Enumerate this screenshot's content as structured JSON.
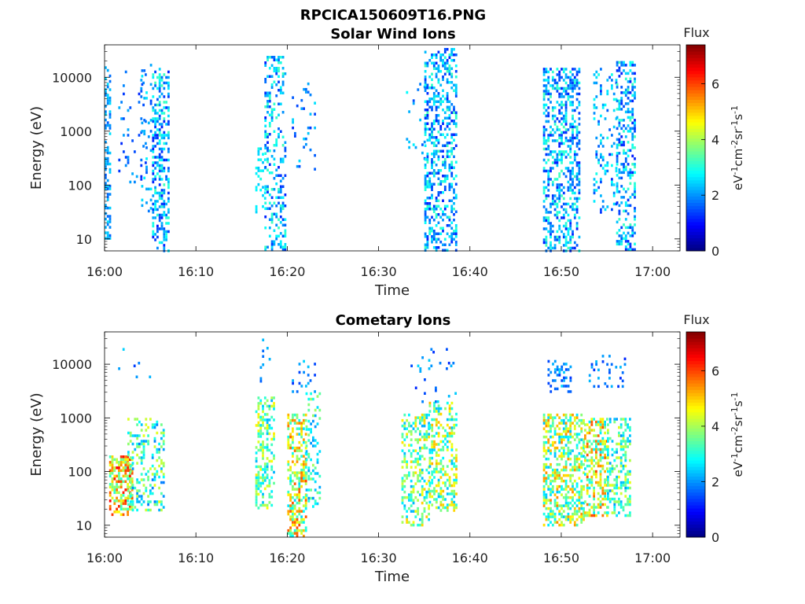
{
  "figure": {
    "title": "RPCICA150609T16.PNG"
  },
  "chart_data": [
    {
      "type": "heatmap",
      "title": "Solar Wind Ions",
      "xlabel": "Time",
      "ylabel": "Energy (eV)",
      "x_ticks": [
        "16:00",
        "16:10",
        "16:20",
        "16:30",
        "16:40",
        "16:50",
        "17:00"
      ],
      "xlim_minutes": [
        0,
        63
      ],
      "y_scale": "log",
      "ylim": [
        6,
        40000
      ],
      "y_ticks": [
        10,
        100,
        1000,
        10000
      ],
      "y_tick_labels": [
        "10",
        "100",
        "1000",
        "10000"
      ],
      "colorbar": {
        "label": "Flux",
        "units": "eV-1cm-2sr-1s-1",
        "range": [
          0,
          7.4
        ],
        "ticks": [
          0,
          2,
          4,
          6
        ],
        "tick_labels": [
          "0",
          "2",
          "4",
          "6"
        ],
        "colormap": "jet"
      },
      "bursts": [
        {
          "t0": 0.0,
          "t1": 0.5,
          "e_lo": 10,
          "e_hi": 18000,
          "v_lo": 1.6,
          "v_hi": 2.6,
          "density": 0.45
        },
        {
          "t0": 1.5,
          "t1": 4.5,
          "e_lo": 100,
          "e_hi": 15000,
          "v_lo": 1.2,
          "v_hi": 2.2,
          "density": 0.07
        },
        {
          "t0": 4.0,
          "t1": 5.2,
          "e_lo": 30,
          "e_hi": 20000,
          "v_lo": 1.4,
          "v_hi": 2.8,
          "density": 0.1
        },
        {
          "t0": 5.2,
          "t1": 7.0,
          "e_lo": 6,
          "e_hi": 15000,
          "v_lo": 1.1,
          "v_hi": 3.3,
          "density": 0.42
        },
        {
          "t0": 16.5,
          "t1": 17.5,
          "e_lo": 30,
          "e_hi": 500,
          "v_lo": 2.3,
          "v_hi": 3.0,
          "density": 0.25
        },
        {
          "t0": 17.5,
          "t1": 19.8,
          "e_lo": 6,
          "e_hi": 25000,
          "v_lo": 1.1,
          "v_hi": 3.3,
          "density": 0.32
        },
        {
          "t0": 20.5,
          "t1": 23.0,
          "e_lo": 200,
          "e_hi": 9000,
          "v_lo": 1.2,
          "v_hi": 2.6,
          "density": 0.1
        },
        {
          "t0": 33.0,
          "t1": 35.0,
          "e_lo": 300,
          "e_hi": 10000,
          "v_lo": 1.4,
          "v_hi": 2.8,
          "density": 0.06
        },
        {
          "t0": 35.0,
          "t1": 38.5,
          "e_lo": 6,
          "e_hi": 35000,
          "v_lo": 1.1,
          "v_hi": 3.3,
          "density": 0.4
        },
        {
          "t0": 48.0,
          "t1": 52.0,
          "e_lo": 6,
          "e_hi": 15000,
          "v_lo": 1.1,
          "v_hi": 3.3,
          "density": 0.4
        },
        {
          "t0": 53.5,
          "t1": 56.0,
          "e_lo": 30,
          "e_hi": 15000,
          "v_lo": 1.2,
          "v_hi": 3.0,
          "density": 0.2
        },
        {
          "t0": 56.0,
          "t1": 58.0,
          "e_lo": 6,
          "e_hi": 20000,
          "v_lo": 1.1,
          "v_hi": 3.3,
          "density": 0.4
        }
      ]
    },
    {
      "type": "heatmap",
      "title": "Cometary Ions",
      "xlabel": "Time",
      "ylabel": "Energy (eV)",
      "x_ticks": [
        "16:00",
        "16:10",
        "16:20",
        "16:30",
        "16:40",
        "16:50",
        "17:00"
      ],
      "xlim_minutes": [
        0,
        63
      ],
      "y_scale": "log",
      "ylim": [
        6,
        40000
      ],
      "y_ticks": [
        10,
        100,
        1000,
        10000
      ],
      "y_tick_labels": [
        "10",
        "100",
        "1000",
        "10000"
      ],
      "colorbar": {
        "label": "Flux",
        "units": "eV-1cm-2sr-1s-1",
        "range": [
          0,
          7.4
        ],
        "ticks": [
          0,
          2,
          4,
          6
        ],
        "tick_labels": [
          "0",
          "2",
          "4",
          "6"
        ],
        "colormap": "jet"
      },
      "bursts": [
        {
          "t0": 0.5,
          "t1": 3.0,
          "e_lo": 15,
          "e_hi": 200,
          "v_lo": 3.0,
          "v_hi": 6.5,
          "density": 0.6
        },
        {
          "t0": 2.5,
          "t1": 6.5,
          "e_lo": 20,
          "e_hi": 1000,
          "v_lo": 1.8,
          "v_hi": 4.5,
          "density": 0.3
        },
        {
          "t0": 1.0,
          "t1": 5.0,
          "e_lo": 5000,
          "e_hi": 20000,
          "v_lo": 1.3,
          "v_hi": 2.5,
          "density": 0.07
        },
        {
          "t0": 16.5,
          "t1": 18.5,
          "e_lo": 20,
          "e_hi": 2500,
          "v_lo": 2.2,
          "v_hi": 4.8,
          "density": 0.4
        },
        {
          "t0": 17.0,
          "t1": 18.0,
          "e_lo": 5000,
          "e_hi": 30000,
          "v_lo": 1.2,
          "v_hi": 2.5,
          "density": 0.1
        },
        {
          "t0": 20.0,
          "t1": 22.0,
          "e_lo": 6,
          "e_hi": 1200,
          "v_lo": 2.5,
          "v_hi": 6.0,
          "density": 0.5
        },
        {
          "t0": 22.0,
          "t1": 23.5,
          "e_lo": 20,
          "e_hi": 3000,
          "v_lo": 2.0,
          "v_hi": 4.0,
          "density": 0.25
        },
        {
          "t0": 20.5,
          "t1": 23.0,
          "e_lo": 3000,
          "e_hi": 12000,
          "v_lo": 1.2,
          "v_hi": 2.5,
          "density": 0.1
        },
        {
          "t0": 32.5,
          "t1": 35.5,
          "e_lo": 10,
          "e_hi": 1200,
          "v_lo": 2.2,
          "v_hi": 5.0,
          "density": 0.4
        },
        {
          "t0": 35.5,
          "t1": 38.5,
          "e_lo": 20,
          "e_hi": 2000,
          "v_lo": 2.3,
          "v_hi": 5.2,
          "density": 0.45
        },
        {
          "t0": 33.5,
          "t1": 38.5,
          "e_lo": 2000,
          "e_hi": 20000,
          "v_lo": 1.2,
          "v_hi": 2.5,
          "density": 0.05
        },
        {
          "t0": 48.0,
          "t1": 52.5,
          "e_lo": 10,
          "e_hi": 1200,
          "v_lo": 2.3,
          "v_hi": 5.5,
          "density": 0.5
        },
        {
          "t0": 52.5,
          "t1": 55.0,
          "e_lo": 15,
          "e_hi": 1000,
          "v_lo": 2.5,
          "v_hi": 6.0,
          "density": 0.5
        },
        {
          "t0": 55.0,
          "t1": 57.5,
          "e_lo": 15,
          "e_hi": 1000,
          "v_lo": 2.0,
          "v_hi": 4.5,
          "density": 0.4
        },
        {
          "t0": 48.5,
          "t1": 51.0,
          "e_lo": 3000,
          "e_hi": 12000,
          "v_lo": 1.3,
          "v_hi": 2.5,
          "density": 0.25
        },
        {
          "t0": 53.0,
          "t1": 57.0,
          "e_lo": 4000,
          "e_hi": 15000,
          "v_lo": 1.2,
          "v_hi": 2.3,
          "density": 0.15
        }
      ]
    }
  ]
}
